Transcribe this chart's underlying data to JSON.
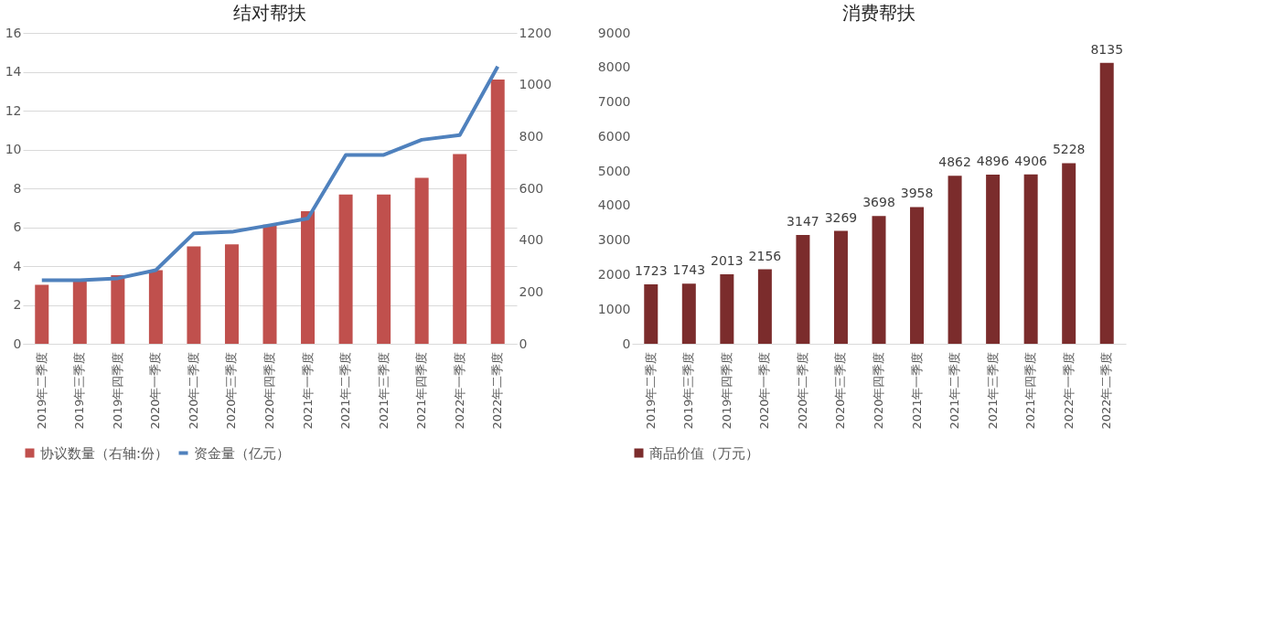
{
  "chart_data": [
    {
      "type": "bar",
      "title": "结对帮扶",
      "categories": [
        "2019年二季度",
        "2019年三季度",
        "2019年四季度",
        "2020年一季度",
        "2020年二季度",
        "2020年三季度",
        "2020年四季度",
        "2021年一季度",
        "2021年二季度",
        "2021年三季度",
        "2021年四季度",
        "2022年一季度",
        "2022年二季度"
      ],
      "series": [
        {
          "name": "协议数量（右轴:份）",
          "type": "bar",
          "axis": "y2",
          "color": "#c0504d",
          "values": [
            228,
            245,
            265,
            284,
            376,
            384,
            460,
            512,
            576,
            576,
            641,
            732,
            1020
          ]
        },
        {
          "name": "资金量（亿元）",
          "type": "line",
          "color": "#4f81bd",
          "values": [
            3.27,
            3.27,
            3.37,
            3.79,
            5.68,
            5.76,
            6.1,
            6.45,
            9.72,
            9.72,
            10.5,
            10.74,
            14.27
          ]
        }
      ],
      "ylim": [
        0,
        16
      ],
      "yticks": [
        0,
        2,
        4,
        6,
        8,
        10,
        12,
        14,
        16
      ],
      "y2lim": [
        0,
        1200
      ],
      "y2ticks": [
        0,
        200,
        400,
        600,
        800,
        1000,
        1200
      ],
      "grid": "y",
      "legend": "bottom",
      "marker": "none"
    },
    {
      "type": "bar",
      "title": "消费帮扶",
      "categories": [
        "2019年二季度",
        "2019年三季度",
        "2019年四季度",
        "2020年一季度",
        "2020年二季度",
        "2020年三季度",
        "2020年四季度",
        "2021年一季度",
        "2021年二季度",
        "2021年三季度",
        "2021年四季度",
        "2022年一季度",
        "2022年二季度"
      ],
      "series": [
        {
          "name": "商品价值（万元）",
          "type": "bar",
          "color": "#7b2c2c",
          "values": [
            1723,
            1743,
            2013,
            2156,
            3147,
            3269,
            3698,
            3958,
            4862,
            4896,
            4906,
            5228,
            8135
          ]
        }
      ],
      "ylim": [
        0,
        9000
      ],
      "yticks": [
        0,
        1000,
        2000,
        3000,
        4000,
        5000,
        6000,
        7000,
        8000,
        9000
      ],
      "grid": false,
      "legend": "bottom",
      "data_labels": true
    }
  ]
}
